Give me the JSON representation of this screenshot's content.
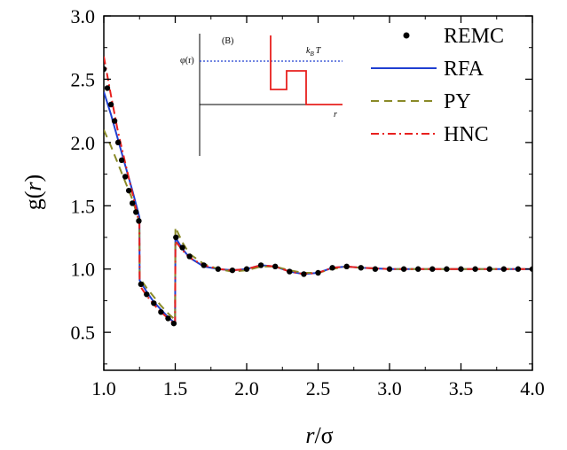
{
  "chart_data": {
    "type": "line",
    "xlabel_main": "r",
    "xlabel_unit": "/σ",
    "ylabel_prefix": "g(",
    "ylabel_var": "r",
    "ylabel_suffix": ")",
    "xlim": [
      1.0,
      4.0
    ],
    "ylim": [
      0.2,
      3.0
    ],
    "xticks": [
      "1.0",
      "1.5",
      "2.0",
      "2.5",
      "3.0",
      "3.5",
      "4.0"
    ],
    "yticks": [
      "0.5",
      "1.0",
      "1.5",
      "2.0",
      "2.5",
      "3.0"
    ],
    "legend_position": "top-right",
    "series": [
      {
        "name": "REMC",
        "style": "dots",
        "color": "#000000",
        "x": [
          1.0,
          1.025,
          1.05,
          1.075,
          1.1,
          1.125,
          1.15,
          1.175,
          1.2,
          1.225,
          1.245,
          1.26,
          1.3,
          1.35,
          1.4,
          1.45,
          1.49,
          1.505,
          1.55,
          1.6,
          1.7,
          1.8,
          1.9,
          2.0,
          2.1,
          2.2,
          2.3,
          2.4,
          2.5,
          2.6,
          2.7,
          2.8,
          2.9,
          3.0,
          3.1,
          3.2,
          3.3,
          3.4,
          3.5,
          3.6,
          3.7,
          3.8,
          3.9,
          4.0
        ],
        "y": [
          2.58,
          2.43,
          2.3,
          2.17,
          2.0,
          1.86,
          1.73,
          1.62,
          1.52,
          1.45,
          1.38,
          0.88,
          0.8,
          0.73,
          0.66,
          0.61,
          0.57,
          1.25,
          1.17,
          1.1,
          1.03,
          1.0,
          0.99,
          1.0,
          1.03,
          1.02,
          0.98,
          0.96,
          0.97,
          1.01,
          1.02,
          1.01,
          1.0,
          1.0,
          1.0,
          1.0,
          1.0,
          1.0,
          1.0,
          1.0,
          1.0,
          1.0,
          1.0,
          1.0
        ]
      },
      {
        "name": "RFA",
        "style": "solid",
        "color": "#1f3fd1",
        "x": [
          1.0,
          1.05,
          1.1,
          1.15,
          1.2,
          1.249,
          1.251,
          1.3,
          1.35,
          1.4,
          1.45,
          1.499,
          1.501,
          1.55,
          1.6,
          1.7,
          1.8,
          1.9,
          2.0,
          2.1,
          2.2,
          2.3,
          2.4,
          2.5,
          2.6,
          2.7,
          2.8,
          3.0,
          3.5,
          4.0
        ],
        "y": [
          2.4,
          2.22,
          2.02,
          1.82,
          1.62,
          1.41,
          0.91,
          0.82,
          0.74,
          0.68,
          0.62,
          0.57,
          1.25,
          1.16,
          1.09,
          1.02,
          1.0,
          0.99,
          1.0,
          1.03,
          1.02,
          0.98,
          0.96,
          0.97,
          1.01,
          1.02,
          1.01,
          1.0,
          1.0,
          1.0
        ]
      },
      {
        "name": "PY",
        "style": "dash",
        "color": "#8a8a28",
        "x": [
          1.0,
          1.05,
          1.1,
          1.15,
          1.2,
          1.249,
          1.251,
          1.3,
          1.35,
          1.4,
          1.45,
          1.499,
          1.501,
          1.55,
          1.6,
          1.7,
          1.8,
          1.9,
          2.0,
          2.1,
          2.2,
          2.3,
          2.4,
          2.5,
          2.6,
          2.7,
          2.8,
          3.0,
          3.5,
          4.0
        ],
        "y": [
          2.1,
          1.97,
          1.83,
          1.69,
          1.55,
          1.37,
          0.93,
          0.85,
          0.78,
          0.71,
          0.65,
          0.6,
          1.33,
          1.21,
          1.12,
          1.04,
          1.0,
          0.98,
          0.99,
          1.02,
          1.02,
          0.99,
          0.97,
          0.97,
          1.0,
          1.02,
          1.01,
          1.0,
          1.0,
          1.0
        ]
      },
      {
        "name": "HNC",
        "style": "dashdot",
        "color": "#e8201e",
        "x": [
          1.0,
          1.05,
          1.1,
          1.15,
          1.2,
          1.249,
          1.251,
          1.3,
          1.35,
          1.4,
          1.45,
          1.499,
          1.501,
          1.55,
          1.6,
          1.7,
          1.8,
          1.9,
          2.0,
          2.1,
          2.2,
          2.3,
          2.4,
          2.5,
          2.6,
          2.7,
          2.8,
          3.0,
          3.5,
          4.0
        ],
        "y": [
          2.68,
          2.37,
          2.08,
          1.84,
          1.6,
          1.36,
          0.87,
          0.79,
          0.72,
          0.66,
          0.61,
          0.56,
          1.22,
          1.15,
          1.09,
          1.03,
          1.0,
          0.99,
          1.0,
          1.03,
          1.02,
          0.98,
          0.96,
          0.97,
          1.01,
          1.02,
          1.01,
          1.0,
          1.0,
          1.0
        ]
      }
    ],
    "inset": {
      "label": "(B)",
      "ylabel": "φ(r)",
      "level_label_main": "k",
      "level_label_sub": "B",
      "level_label_end": "T",
      "xlabel": "r",
      "level_color": "#1f3fd1",
      "potential_color": "#e8201e"
    }
  }
}
